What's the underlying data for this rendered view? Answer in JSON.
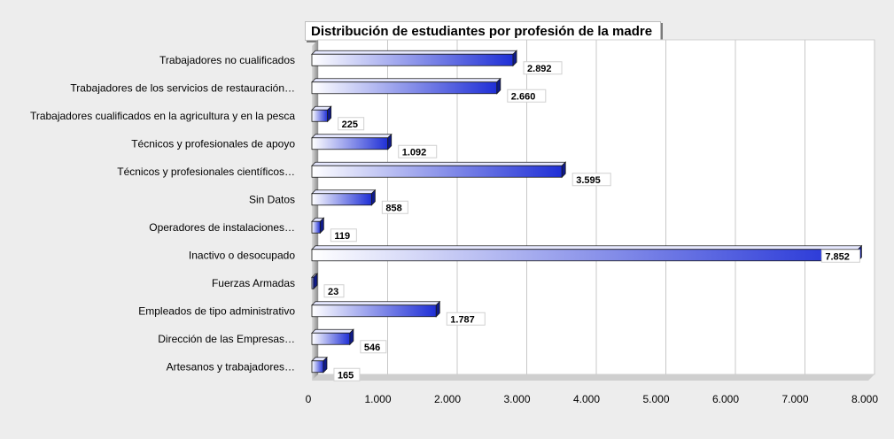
{
  "chart_data": {
    "type": "bar",
    "orientation": "horizontal",
    "title": "Distribución de estudiantes por profesión de la madre",
    "xlabel": "",
    "ylabel": "",
    "xlim": [
      0,
      8000
    ],
    "ticks": [
      0,
      1000,
      2000,
      3000,
      4000,
      5000,
      6000,
      7000,
      8000
    ],
    "tick_labels": [
      "0",
      "1.000",
      "2.000",
      "3.000",
      "4.000",
      "5.000",
      "6.000",
      "7.000",
      "8.000"
    ],
    "grid": true,
    "categories": [
      "Trabajadores no cualificados",
      "Trabajadores de los servicios de restauración…",
      "Trabajadores cualificados en la agricultura y en la pesca",
      "Técnicos y profesionales de apoyo",
      "Técnicos y profesionales científicos…",
      "Sin Datos",
      "Operadores de instalaciones…",
      "Inactivo o desocupado",
      "Fuerzas Armadas",
      "Empleados de tipo administrativo",
      "Dirección de las Empresas…",
      "Artesanos y trabajadores…"
    ],
    "values": [
      2892,
      2660,
      225,
      1092,
      3595,
      858,
      119,
      7852,
      23,
      1787,
      546,
      165
    ],
    "value_labels": [
      "2.892",
      "2.660",
      "225",
      "1.092",
      "3.595",
      "858",
      "119",
      "7.852",
      "23",
      "1.787",
      "546",
      "165"
    ],
    "bar_color_start": "#ffffff",
    "bar_color_end": "#1f2fd6"
  }
}
